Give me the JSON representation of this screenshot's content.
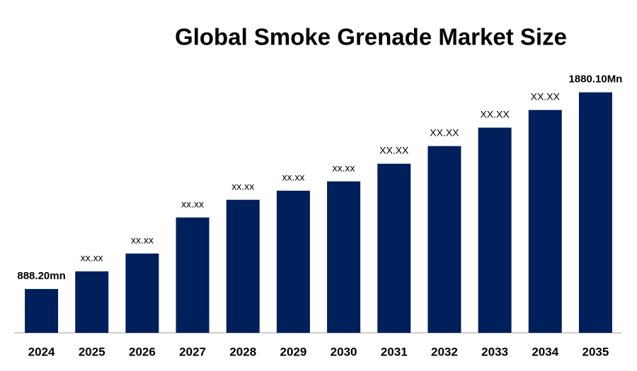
{
  "chart_data": {
    "type": "bar",
    "title": "Global Smoke Grenade Market Size",
    "categories": [
      "2024",
      "2025",
      "2026",
      "2027",
      "2028",
      "2029",
      "2030",
      "2031",
      "2032",
      "2033",
      "2034",
      "2035"
    ],
    "values": [
      888.2,
      977,
      1067,
      1249,
      1338,
      1384,
      1431,
      1520,
      1609,
      1702,
      1791,
      1880.1
    ],
    "value_labels": [
      "888.20mn",
      "xx.xx",
      "xx.xx",
      "xx.xx",
      "xx.xx",
      "xx.xx",
      "xx.xx",
      "XX.XX",
      "XX.XX",
      "XX.XX",
      "XX.XX",
      "1880.10Mn"
    ],
    "color": "#00205b",
    "ylim": [
      667,
      2000
    ]
  }
}
